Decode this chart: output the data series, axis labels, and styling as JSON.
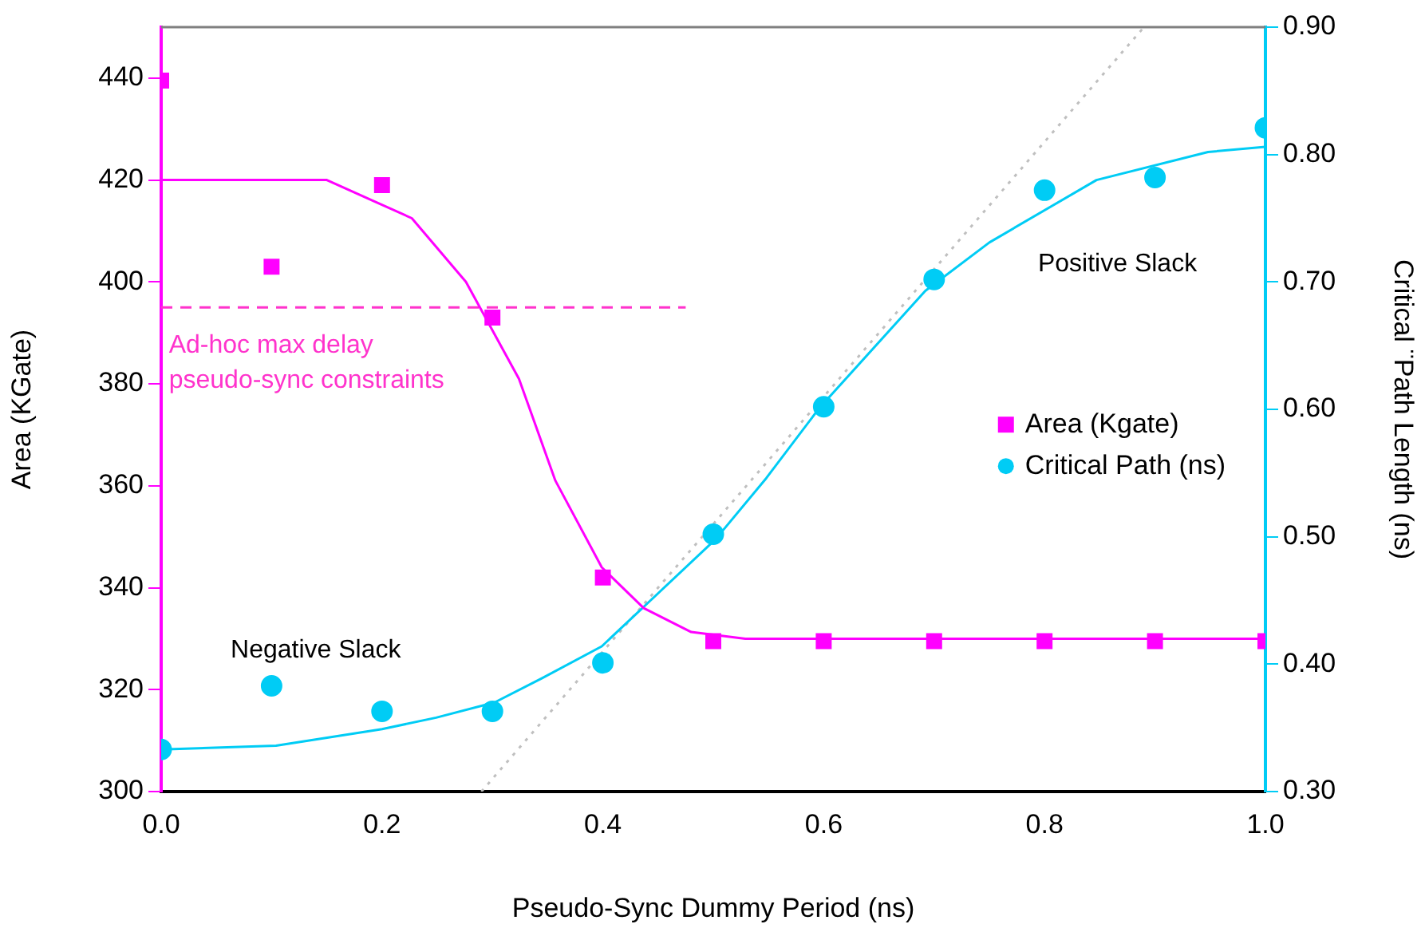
{
  "chart_data": {
    "type": "scatter",
    "xlabel": "Pseudo-Sync Dummy Period (ns)",
    "ylabel": "Area (KGate)",
    "y2label": "Critical ¨Path Length (ns)",
    "x": [
      0.0,
      0.1,
      0.2,
      0.3,
      0.4,
      0.5,
      0.6,
      0.7,
      0.8,
      0.9,
      1.0
    ],
    "series": [
      {
        "name": "Area (Kgate)",
        "marker": "square",
        "color": "#ff00ff",
        "axis": "y",
        "values": [
          439.5,
          403,
          419,
          393,
          342,
          329.5,
          329.5,
          329.5,
          329.5,
          329.5,
          329.5
        ]
      },
      {
        "name": "Critical Path (ns)",
        "marker": "circle",
        "color": "#00ccf5",
        "axis": "y2",
        "values": [
          0.333,
          0.383,
          0.363,
          0.363,
          0.401,
          0.502,
          0.602,
          0.702,
          0.772,
          0.782,
          0.821
        ]
      },
      {
        "type": "line",
        "marker": "none",
        "line_style": "solid",
        "color": "#ff00ff",
        "axis": "y",
        "x": [
          0,
          0.15,
          0.227,
          0.276,
          0.324,
          0.357,
          0.399,
          0.437,
          0.48,
          0.529,
          1.0
        ],
        "values": [
          420,
          420,
          412.5,
          400,
          381,
          361,
          344,
          336,
          331.3,
          330,
          330
        ]
      },
      {
        "type": "line",
        "marker": "none",
        "line_style": "solid",
        "color": "#00ccf5",
        "axis": "y2",
        "x": [
          0,
          0.104,
          0.2,
          0.249,
          0.302,
          0.345,
          0.399,
          0.437,
          0.502,
          0.548,
          0.596,
          0.692,
          0.75,
          0.847,
          0.948,
          1.0
        ],
        "values": [
          0.333,
          0.336,
          0.349,
          0.358,
          0.37,
          0.389,
          0.414,
          0.445,
          0.498,
          0.546,
          0.601,
          0.693,
          0.731,
          0.78,
          0.802,
          0.806
        ]
      },
      {
        "type": "line",
        "marker": "none",
        "line_style": "dashed",
        "color": "#ff33cc",
        "axis": "y",
        "x": [
          0,
          0.475
        ],
        "values": [
          395,
          395
        ]
      },
      {
        "type": "line",
        "marker": "none",
        "line_style": "dotted",
        "color": "#bfbfbf",
        "axis": "y2",
        "x": [
          0.29,
          0.89
        ],
        "values": [
          0.3,
          0.9
        ]
      }
    ],
    "xlim": [
      0,
      1
    ],
    "xticks": [
      {
        "value": 0,
        "label": "0.0"
      },
      0.2,
      0.4,
      0.6,
      0.8,
      {
        "value": 1,
        "label": "1.0"
      }
    ],
    "ylim": [
      300,
      450
    ],
    "yticks": [
      300,
      320,
      340,
      360,
      380,
      400,
      420,
      440
    ],
    "y2lim": [
      0.3,
      0.9
    ],
    "y2ticks": [
      {
        "value": 0.3,
        "label": "0.30"
      },
      {
        "value": 0.4,
        "label": "0.40"
      },
      {
        "value": 0.5,
        "label": "0.50"
      },
      {
        "value": 0.6,
        "label": "0.60"
      },
      {
        "value": 0.7,
        "label": "0.70"
      },
      {
        "value": 0.8,
        "label": "0.80"
      },
      {
        "value": 0.9,
        "label": "0.90"
      }
    ],
    "annotations": [
      "Ad-hoc max delay pseudo-sync constraints",
      "Negative Slack",
      "Positive Slack"
    ],
    "grid": false,
    "legend": "right"
  }
}
